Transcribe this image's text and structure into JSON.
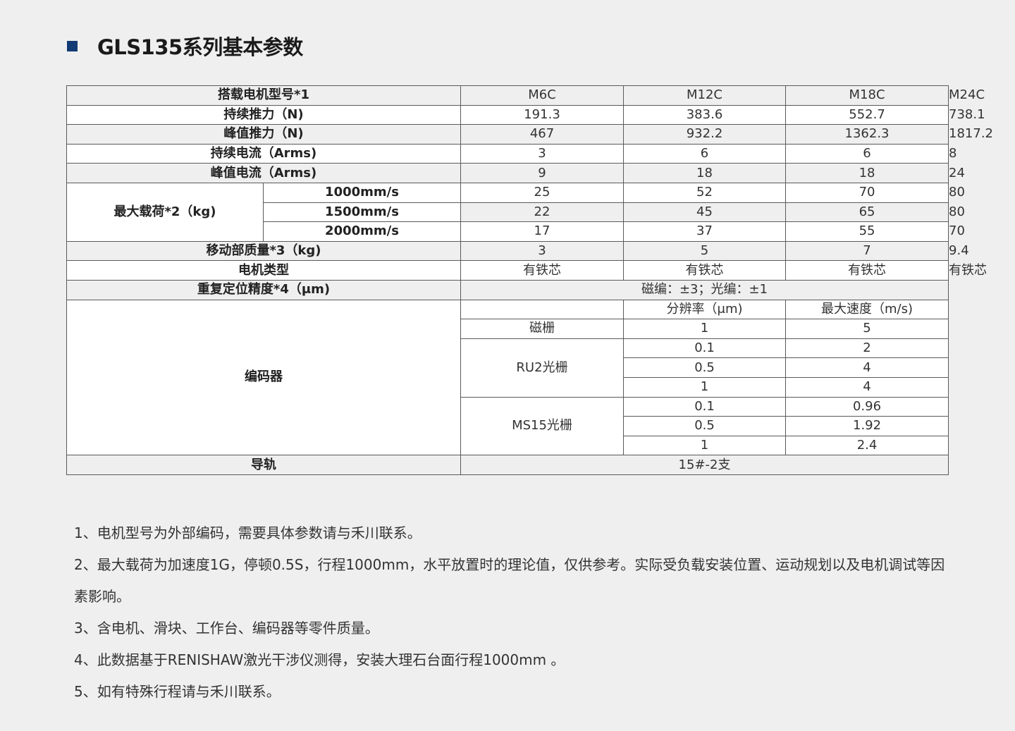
{
  "title": "GLS135系列基本参数",
  "colors": {
    "accent": "#123a74",
    "row_shade": "#efefef",
    "border": "#5a5a5a"
  },
  "table": {
    "header": {
      "label": "搭载电机型号*1",
      "models": [
        "M6C",
        "M12C",
        "M18C",
        "M24C"
      ]
    },
    "rows": [
      {
        "label": "持续推力（N)",
        "values": [
          "191.3",
          "383.6",
          "552.7",
          "738.1"
        ]
      },
      {
        "label": "峰值推力（N)",
        "values": [
          "467",
          "932.2",
          "1362.3",
          "1817.2"
        ]
      },
      {
        "label": "持续电流（Arms)",
        "values": [
          "3",
          "6",
          "6",
          "8"
        ]
      },
      {
        "label": "峰值电流（Arms)",
        "values": [
          "9",
          "18",
          "18",
          "24"
        ]
      }
    ],
    "max_load": {
      "label": "最大载荷*2（kg)",
      "speeds": [
        {
          "speed": "1000mm/s",
          "values": [
            "25",
            "52",
            "70",
            "80"
          ]
        },
        {
          "speed": "1500mm/s",
          "values": [
            "22",
            "45",
            "65",
            "80"
          ]
        },
        {
          "speed": "2000mm/s",
          "values": [
            "17",
            "37",
            "55",
            "70"
          ]
        }
      ]
    },
    "moving_mass": {
      "label": "移动部质量*3（kg)",
      "values": [
        "3",
        "5",
        "7",
        "9.4"
      ]
    },
    "motor_type": {
      "label": "电机类型",
      "values": [
        "有铁芯",
        "有铁芯",
        "有铁芯",
        "有铁芯"
      ]
    },
    "repeatability": {
      "label": "重复定位精度*4（μm)",
      "value": "磁编：±3；光编：±1"
    },
    "encoder": {
      "label": "编码器",
      "col_resolution": "分辨率（μm)",
      "col_max_speed": "最大速度（m/s)",
      "groups": [
        {
          "name": "磁栅",
          "rows": [
            {
              "resolution": "1",
              "max_speed": "5"
            }
          ]
        },
        {
          "name": "RU2光栅",
          "rows": [
            {
              "resolution": "0.1",
              "max_speed": "2"
            },
            {
              "resolution": "0.5",
              "max_speed": "4"
            },
            {
              "resolution": "1",
              "max_speed": "4"
            }
          ]
        },
        {
          "name": "MS15光栅",
          "rows": [
            {
              "resolution": "0.1",
              "max_speed": "0.96"
            },
            {
              "resolution": "0.5",
              "max_speed": "1.92"
            },
            {
              "resolution": "1",
              "max_speed": "2.4"
            }
          ]
        }
      ]
    },
    "guide_rail": {
      "label": "导轨",
      "value": "15#-2支"
    }
  },
  "notes": [
    "1、电机型号为外部编码，需要具体参数请与禾川联系。",
    "2、最大载荷为加速度1G，停顿0.5S，行程1000mm，水平放置时的理论值，仅供参考。实际受负载安装位置、运动规划以及电机调试等因素影响。",
    "3、含电机、滑块、工作台、编码器等零件质量。",
    "4、此数据基于RENISHAW激光干涉仪测得，安装大理石台面行程1000mm 。",
    "5、如有特殊行程请与禾川联系。"
  ]
}
